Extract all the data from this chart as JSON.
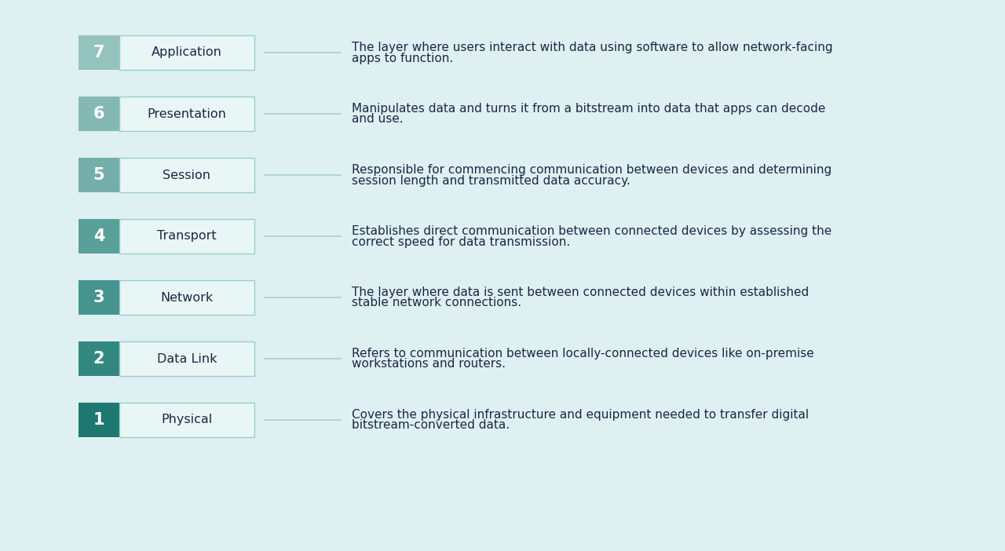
{
  "background_color": "#dff0f2",
  "layers": [
    {
      "number": 7,
      "name": "Application",
      "description_line1": "The layer where users interact with data using software to allow network-facing",
      "description_line2": "apps to function."
    },
    {
      "number": 6,
      "name": "Presentation",
      "description_line1": "Manipulates data and turns it from a bitstream into data that apps can decode",
      "description_line2": "and use."
    },
    {
      "number": 5,
      "name": "Session",
      "description_line1": "Responsible for commencing communication between devices and determining",
      "description_line2": "session length and transmitted data accuracy."
    },
    {
      "number": 4,
      "name": "Transport",
      "description_line1": "Establishes direct communication between connected devices by assessing the",
      "description_line2": "correct speed for data transmission."
    },
    {
      "number": 3,
      "name": "Network",
      "description_line1": "The layer where data is sent between connected devices within established",
      "description_line2": "stable network connections."
    },
    {
      "number": 2,
      "name": "Data Link",
      "description_line1": "Refers to communication between locally-connected devices like on-premise",
      "description_line2": "workstations and routers."
    },
    {
      "number": 1,
      "name": "Physical",
      "description_line1": "Covers the physical infrastructure and equipment needed to transfer digital",
      "description_line2": "bitstream-converted data."
    }
  ],
  "number_bg_colors": [
    "#8dbfba",
    "#8dbfba",
    "#7db5af",
    "#6aaa a4",
    "#4e9e98",
    "#3a8f88",
    "#267f78"
  ],
  "num_bg_colors_clean": [
    "#8dbfba",
    "#8dbfba",
    "#7db5af",
    "#5ea8a2",
    "#4a9e98",
    "#368f88",
    "#1e7f78"
  ],
  "label_bg_color": "#e8f6f5",
  "label_border_color": "#9acfca",
  "text_color": "#1a2744",
  "desc_color": "#1a2744",
  "line_color": "#aacfcc",
  "font_name": "DejaVu Sans"
}
